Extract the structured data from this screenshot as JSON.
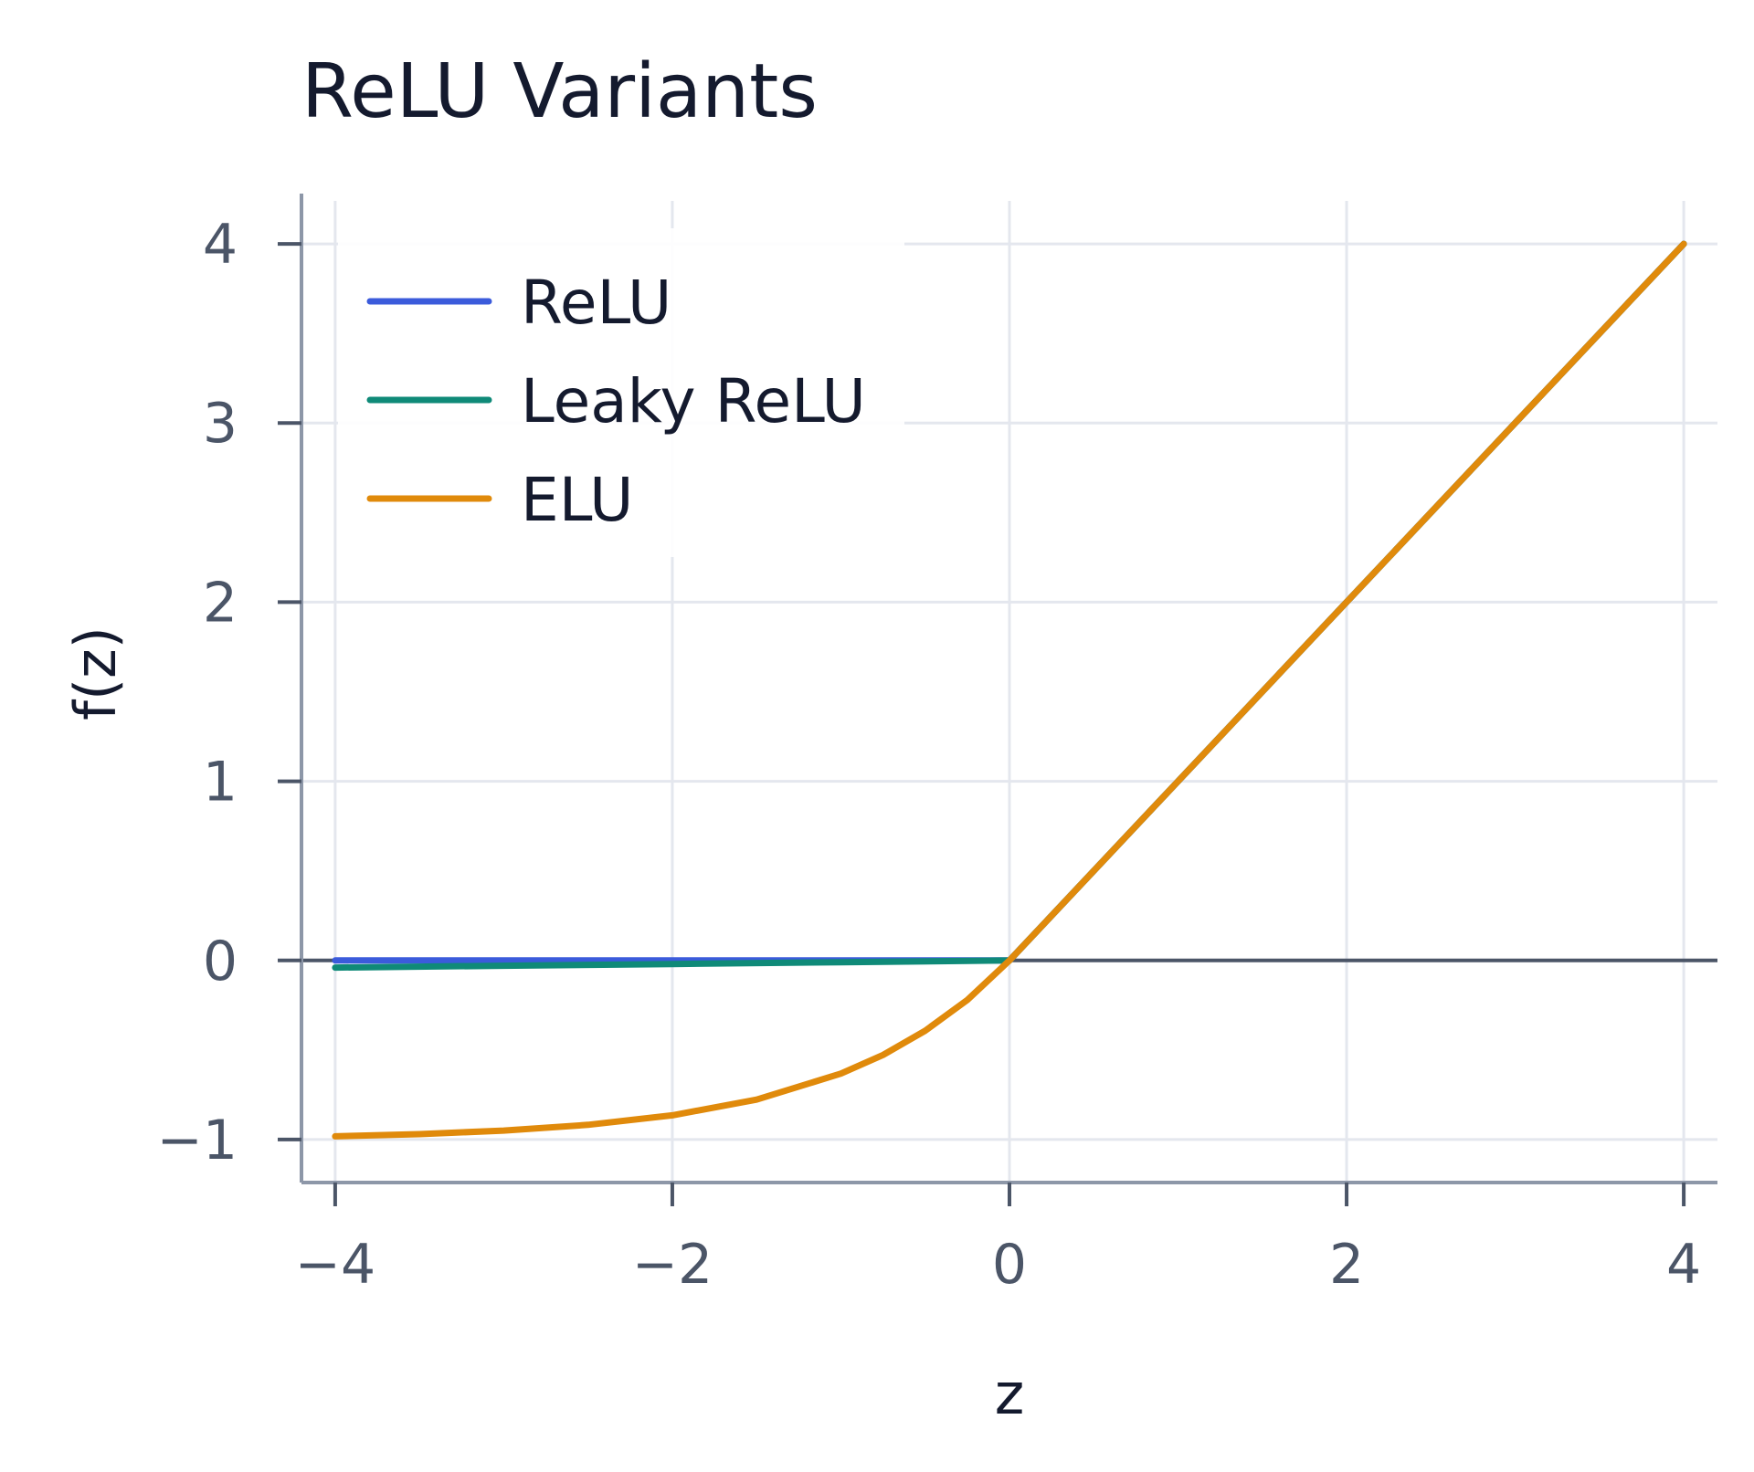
{
  "chart_data": {
    "type": "line",
    "title": "ReLU Variants",
    "xlabel": "z",
    "ylabel": "f(z)",
    "xlim": [
      -4.2,
      4.2
    ],
    "ylim": [
      -1.24,
      4.24
    ],
    "xticks": [
      -4,
      -2,
      0,
      2,
      4
    ],
    "xtick_labels": [
      "−4",
      "−2",
      "0",
      "2",
      "4"
    ],
    "yticks": [
      -1,
      0,
      1,
      2,
      3,
      4
    ],
    "ytick_labels": [
      "−1",
      "0",
      "1",
      "2",
      "3",
      "4"
    ],
    "grid": true,
    "zero_line": true,
    "legend_position": "top-left",
    "series": [
      {
        "name": "ReLU",
        "color": "#3b5bdb",
        "x": [
          -4,
          -3,
          -2,
          -1,
          0,
          1,
          2,
          3,
          4
        ],
        "y": [
          0,
          0,
          0,
          0,
          0,
          1,
          2,
          3,
          4
        ]
      },
      {
        "name": "Leaky ReLU",
        "color": "#0f8a78",
        "x": [
          -4,
          -3,
          -2,
          -1,
          0,
          1,
          2,
          3,
          4
        ],
        "y": [
          -0.04,
          -0.03,
          -0.02,
          -0.01,
          0,
          1,
          2,
          3,
          4
        ]
      },
      {
        "name": "ELU",
        "color": "#e08a0b",
        "x": [
          -4,
          -3.5,
          -3,
          -2.5,
          -2,
          -1.5,
          -1,
          -0.75,
          -0.5,
          -0.25,
          0,
          1,
          2,
          3,
          4
        ],
        "y": [
          -0.982,
          -0.97,
          -0.95,
          -0.918,
          -0.865,
          -0.777,
          -0.632,
          -0.528,
          -0.393,
          -0.221,
          0,
          1,
          2,
          3,
          4
        ]
      }
    ]
  }
}
